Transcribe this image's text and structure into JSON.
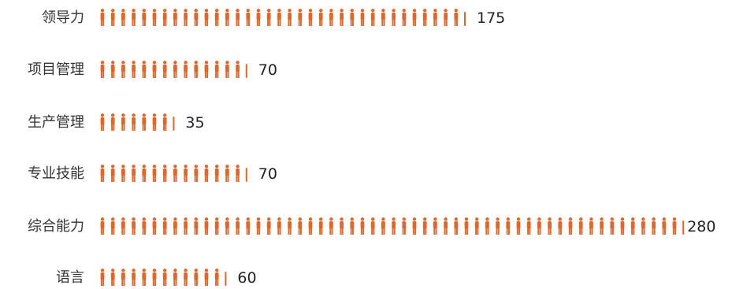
{
  "chart_data": {
    "type": "bar",
    "style": "pictograph",
    "orientation": "horizontal",
    "icon": "person-icon",
    "color": "#e0662a",
    "categories": [
      "领导力",
      "项目管理",
      "生产管理",
      "专业技能",
      "综合能力",
      "语言"
    ],
    "values": [
      175,
      70,
      35,
      70,
      280,
      60
    ],
    "title": "",
    "xlabel": "",
    "ylabel": "",
    "grid": false,
    "legend": "none"
  }
}
